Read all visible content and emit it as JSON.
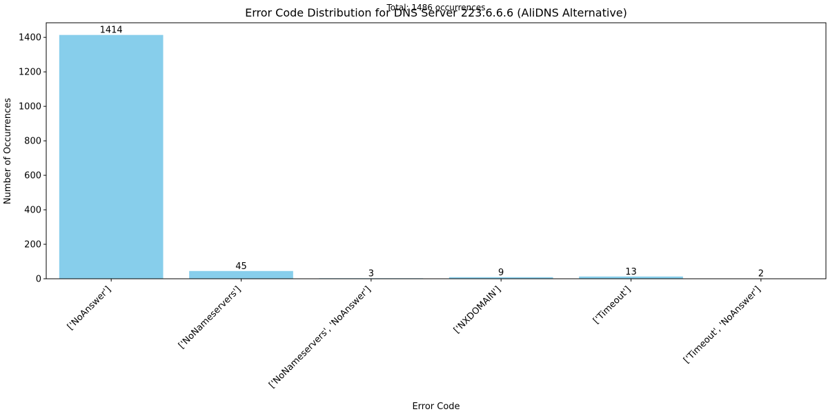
{
  "chart_data": {
    "type": "bar",
    "title": "Error Code Distribution for DNS Server 223.6.6.6 (AliDNS Alternative)",
    "subtitle": "Total: 1486 occurrences",
    "xlabel": "Error Code",
    "ylabel": "Number of Occurrences",
    "categories": [
      "['NoAnswer']",
      "['NoNameservers']",
      "['NoNameservers', 'NoAnswer']",
      "['NXDOMAIN']",
      "['Timeout']",
      "['Timeout', 'NoAnswer']"
    ],
    "values": [
      1414,
      45,
      3,
      9,
      13,
      2
    ],
    "data_labels": [
      "1414",
      "45",
      "3",
      "9",
      "13",
      "2"
    ],
    "ylim": [
      0,
      1484.7
    ],
    "yticks": [
      0,
      200,
      400,
      600,
      800,
      1000,
      1200,
      1400
    ],
    "ytick_labels": [
      "0",
      "200",
      "400",
      "600",
      "800",
      "1000",
      "1200",
      "1400"
    ],
    "bar_color": "#87ceeb",
    "grid": false,
    "legend": "none"
  }
}
